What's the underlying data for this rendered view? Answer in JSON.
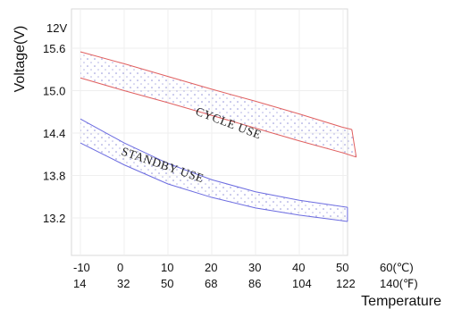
{
  "chart_data": {
    "type": "area",
    "title": "",
    "ylabel": "Voltage(V)",
    "xlabel": "Temperature",
    "y_unit_label": "12V",
    "y_ticks": [
      "15.6",
      "15.0",
      "14.4",
      "13.8",
      "13.2"
    ],
    "y_tick_values": [
      15.6,
      15.0,
      14.4,
      13.8,
      13.2
    ],
    "ylim": [
      12.6,
      16.2
    ],
    "x_ticks_c": [
      "-10",
      "0",
      "10",
      "20",
      "30",
      "40",
      "50",
      "60(℃)"
    ],
    "x_tick_values_c": [
      -10,
      0,
      10,
      20,
      30,
      40,
      50,
      60
    ],
    "x_ticks_f": [
      "14",
      "32",
      "50",
      "68",
      "86",
      "104",
      "122",
      "140(℉)"
    ],
    "xlim": [
      -10,
      63
    ],
    "grid": true,
    "series": [
      {
        "name": "CYCLE USE",
        "color": "#e06060",
        "fill_dot_color": "#8f8fd8",
        "upper": [
          [
            -10,
            15.55
          ],
          [
            0,
            15.38
          ],
          [
            10,
            15.2
          ],
          [
            20,
            15.02
          ],
          [
            30,
            14.85
          ],
          [
            40,
            14.67
          ],
          [
            50,
            14.48
          ],
          [
            52,
            14.45
          ]
        ],
        "lower": [
          [
            -10,
            15.18
          ],
          [
            0,
            15.0
          ],
          [
            10,
            14.83
          ],
          [
            20,
            14.65
          ],
          [
            30,
            14.47
          ],
          [
            40,
            14.29
          ],
          [
            50,
            14.12
          ],
          [
            53,
            14.06
          ]
        ]
      },
      {
        "name": "STANDBY USE",
        "color": "#6b6be0",
        "fill_dot_color": "#8f8fd8",
        "upper": [
          [
            -10,
            14.6
          ],
          [
            0,
            14.26
          ],
          [
            10,
            13.97
          ],
          [
            20,
            13.74
          ],
          [
            30,
            13.57
          ],
          [
            40,
            13.45
          ],
          [
            51,
            13.35
          ]
        ],
        "lower": [
          [
            -10,
            14.26
          ],
          [
            0,
            13.95
          ],
          [
            10,
            13.68
          ],
          [
            20,
            13.49
          ],
          [
            30,
            13.34
          ],
          [
            40,
            13.24
          ],
          [
            51,
            13.15
          ]
        ]
      }
    ],
    "annotations": [
      {
        "text": "CYCLE USE",
        "series": 0
      },
      {
        "text": "STANDBY USE",
        "series": 1
      }
    ]
  }
}
